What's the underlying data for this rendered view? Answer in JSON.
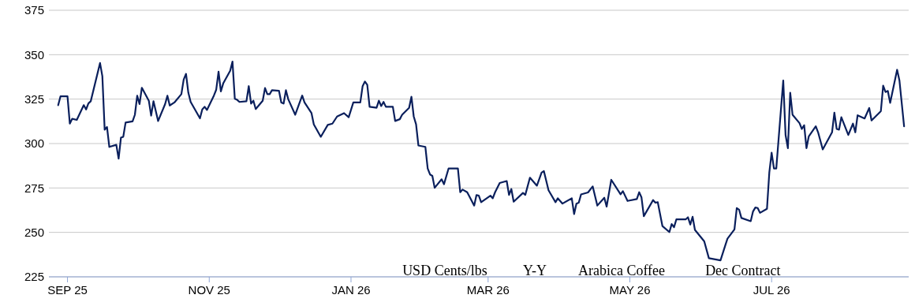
{
  "chart_data": {
    "type": "line",
    "x": [
      "2025-08-28",
      "2025-08-29",
      "2025-09-01",
      "2025-09-02",
      "2025-09-03",
      "2025-09-05",
      "2025-09-08",
      "2025-09-09",
      "2025-09-10",
      "2025-09-11",
      "2025-09-15",
      "2025-09-16",
      "2025-09-17",
      "2025-09-18",
      "2025-09-19",
      "2025-09-22",
      "2025-09-23",
      "2025-09-24",
      "2025-09-25",
      "2025-09-26",
      "2025-09-29",
      "2025-09-30",
      "2025-10-01",
      "2025-10-02",
      "2025-10-03",
      "2025-10-06",
      "2025-10-07",
      "2025-10-08",
      "2025-10-10",
      "2025-10-13",
      "2025-10-14",
      "2025-10-15",
      "2025-10-17",
      "2025-10-20",
      "2025-10-21",
      "2025-10-22",
      "2025-10-23",
      "2025-10-24",
      "2025-10-28",
      "2025-10-29",
      "2025-10-30",
      "2025-10-31",
      "2025-11-03",
      "2025-11-04",
      "2025-11-05",
      "2025-11-06",
      "2025-11-07",
      "2025-11-10",
      "2025-11-11",
      "2025-11-12",
      "2025-11-13",
      "2025-11-14",
      "2025-11-17",
      "2025-11-18",
      "2025-11-19",
      "2025-11-20",
      "2025-11-21",
      "2025-11-24",
      "2025-11-25",
      "2025-11-26",
      "2025-11-27",
      "2025-11-28",
      "2025-12-01",
      "2025-12-02",
      "2025-12-03",
      "2025-12-04",
      "2025-12-05",
      "2025-12-08",
      "2025-12-11",
      "2025-12-12",
      "2025-12-15",
      "2025-12-16",
      "2025-12-19",
      "2025-12-22",
      "2025-12-24",
      "2025-12-26",
      "2025-12-29",
      "2025-12-31",
      "2026-01-02",
      "2026-01-05",
      "2026-01-06",
      "2026-01-07",
      "2026-01-08",
      "2026-01-09",
      "2026-01-12",
      "2026-01-13",
      "2026-01-14",
      "2026-01-15",
      "2026-01-16",
      "2026-01-19",
      "2026-01-20",
      "2026-01-22",
      "2026-01-23",
      "2026-01-26",
      "2026-01-27",
      "2026-01-28",
      "2026-01-29",
      "2026-01-30",
      "2026-02-02",
      "2026-02-03",
      "2026-02-04",
      "2026-02-05",
      "2026-02-06",
      "2026-02-09",
      "2026-02-10",
      "2026-02-12",
      "2026-02-16",
      "2026-02-17",
      "2026-02-18",
      "2026-02-20",
      "2026-02-23",
      "2026-02-24",
      "2026-02-25",
      "2026-02-26",
      "2026-03-02",
      "2026-03-03",
      "2026-03-04",
      "2026-03-06",
      "2026-03-09",
      "2026-03-10",
      "2026-03-11",
      "2026-03-12",
      "2026-03-16",
      "2026-03-17",
      "2026-03-19",
      "2026-03-22",
      "2026-03-24",
      "2026-03-25",
      "2026-03-27",
      "2026-03-30",
      "2026-03-31",
      "2026-04-02",
      "2026-04-06",
      "2026-04-07",
      "2026-04-08",
      "2026-04-09",
      "2026-04-10",
      "2026-04-13",
      "2026-04-15",
      "2026-04-17",
      "2026-04-20",
      "2026-04-21",
      "2026-04-23",
      "2026-04-27",
      "2026-04-28",
      "2026-04-30",
      "2026-05-04",
      "2026-05-05",
      "2026-05-06",
      "2026-05-07",
      "2026-05-11",
      "2026-05-12",
      "2026-05-13",
      "2026-05-15",
      "2026-05-18",
      "2026-05-19",
      "2026-05-20",
      "2026-05-21",
      "2026-05-25",
      "2026-05-26",
      "2026-05-27",
      "2026-05-28",
      "2026-05-29",
      "2026-06-02",
      "2026-06-04",
      "2026-06-09",
      "2026-06-11",
      "2026-06-12",
      "2026-06-15",
      "2026-06-16",
      "2026-06-17",
      "2026-06-18",
      "2026-06-22",
      "2026-06-23",
      "2026-06-24",
      "2026-06-25",
      "2026-06-26",
      "2026-06-29",
      "2026-06-30",
      "2026-07-01",
      "2026-07-02",
      "2026-07-03",
      "2026-07-06",
      "2026-07-07",
      "2026-07-08",
      "2026-07-09",
      "2026-07-10",
      "2026-07-13",
      "2026-07-14",
      "2026-07-15",
      "2026-07-16",
      "2026-07-17",
      "2026-07-20",
      "2026-07-21",
      "2026-07-23",
      "2026-07-27",
      "2026-07-28",
      "2026-07-29",
      "2026-07-30",
      "2026-07-31",
      "2026-08-03",
      "2026-08-05",
      "2026-08-06",
      "2026-08-07",
      "2026-08-10",
      "2026-08-12",
      "2026-08-13",
      "2026-08-17",
      "2026-08-18",
      "2026-08-19",
      "2026-08-20",
      "2026-08-21",
      "2026-08-24",
      "2026-08-25",
      "2026-08-27"
    ],
    "series": [
      {
        "color": "#0a1f5c",
        "values": [
          321.6,
          326.6,
          326.6,
          311.2,
          313.9,
          313.3,
          321.6,
          319.2,
          322.6,
          323.8,
          345.3,
          337.9,
          307.8,
          309.3,
          298.1,
          299.3,
          291.5,
          303.3,
          303.8,
          311.8,
          312.5,
          316.2,
          326.9,
          322.2,
          331.4,
          324.1,
          315.7,
          323.8,
          312.7,
          322.2,
          326.9,
          321.4,
          323.1,
          327.8,
          336,
          339.2,
          328.6,
          323.4,
          314.2,
          319.2,
          320.7,
          318.9,
          327,
          330.3,
          340.4,
          329.3,
          333.8,
          340.9,
          346.1,
          325.2,
          324.6,
          323.4,
          323.8,
          332.3,
          322.5,
          324.1,
          319.4,
          324.1,
          331.2,
          327.8,
          327.8,
          330,
          329.7,
          323.1,
          322.5,
          330,
          324.9,
          316.2,
          327,
          323.1,
          317.1,
          310.8,
          303.8,
          310.5,
          311.2,
          315.2,
          317.1,
          314.8,
          323.1,
          323.1,
          332.3,
          334.9,
          333,
          320.7,
          320.1,
          324.1,
          321.1,
          323.4,
          320.7,
          320.7,
          312.7,
          313.7,
          316.2,
          320.1,
          326.3,
          315.2,
          310.8,
          298.9,
          298.1,
          286,
          282.6,
          281.8,
          275.1,
          279.9,
          277.1,
          286,
          286,
          272.6,
          274.1,
          272.6,
          265.1,
          271,
          270.7,
          267,
          270.7,
          269.2,
          272.6,
          277.8,
          278.9,
          271.1,
          274.4,
          267.3,
          272.2,
          271.1,
          280.8,
          276.3,
          283.6,
          284.5,
          273.7,
          267,
          269.2,
          266.2,
          269.2,
          260.3,
          266.2,
          266.7,
          271.4,
          272.5,
          275.9,
          265.1,
          269.5,
          264.5,
          279.6,
          271.4,
          273.2,
          267.7,
          268.8,
          272.6,
          269.7,
          259.1,
          268.2,
          266.7,
          267,
          253.6,
          250.2,
          254.7,
          252.9,
          257.3,
          257.3,
          258.5,
          254.4,
          258.8,
          251.4,
          245,
          235.5,
          234.3,
          242.5,
          246.5,
          251.7,
          263.7,
          262.8,
          258.1,
          256.3,
          261.8,
          264,
          263.7,
          261,
          263.3,
          283.6,
          294.8,
          286,
          286,
          335.5,
          304.8,
          297.4,
          328.6,
          316.2,
          311.5,
          308.2,
          310.3,
          297.4,
          304.1,
          309.7,
          306.3,
          296.7,
          306.3,
          317.4,
          308.2,
          307.8,
          314.8,
          304.8,
          311.2,
          306.3,
          315.9,
          314.1,
          320,
          313,
          318.2,
          332.6,
          329,
          329.6,
          322.9,
          341.5,
          335.5,
          309.7
        ]
      }
    ],
    "xlim": [
      "2025-08-24",
      "2026-08-30"
    ],
    "xticks": [
      {
        "value": "2025-09-01",
        "label": "SEP 25"
      },
      {
        "value": "2025-11-01",
        "label": "NOV 25"
      },
      {
        "value": "2026-01-01",
        "label": "JAN 26"
      },
      {
        "value": "2026-03-01",
        "label": "MAR 26"
      },
      {
        "value": "2026-05-01",
        "label": "MAY 26"
      },
      {
        "value": "2026-07-01",
        "label": "JUL 26"
      }
    ],
    "ylim": [
      225,
      375
    ],
    "yticks": [
      225,
      250,
      275,
      300,
      325,
      350,
      375
    ],
    "grid": "y",
    "annotations": [
      "USD Cents/lbs",
      "Y-Y",
      "Arabica Coffee",
      "Dec Contract"
    ]
  }
}
